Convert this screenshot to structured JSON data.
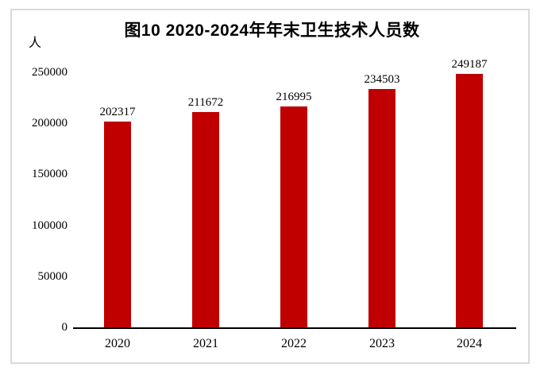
{
  "page": {
    "background": "#FFFFFF"
  },
  "chart": {
    "title": "图10 2020-2024年年末卫生技术人员数",
    "y_unit_label": "人",
    "colors": {
      "bar": "#C00000",
      "axis": "#000000",
      "text": "#000000",
      "frame_border": "#D9D9D9"
    }
  },
  "chart_data": {
    "type": "bar",
    "title": "图10 2020-2024年年末卫生技术人员数",
    "categories": [
      "2020",
      "2021",
      "2022",
      "2023",
      "2024"
    ],
    "values": [
      202317,
      211672,
      216995,
      234503,
      249187
    ],
    "show_data_labels": true,
    "xlabel": "",
    "ylabel": "人",
    "ylim": [
      0,
      250000
    ],
    "yticks": [
      0,
      50000,
      100000,
      150000,
      200000,
      250000
    ],
    "grid": false,
    "legend": "none",
    "bar_color": "#C00000"
  }
}
